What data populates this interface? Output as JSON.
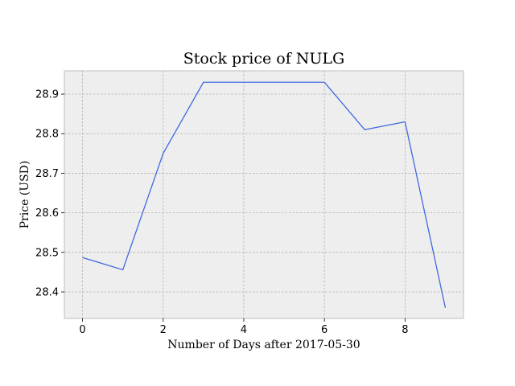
{
  "chart_data": {
    "type": "line",
    "title": "Stock price of NULG",
    "xlabel": "Number of Days after 2017-05-30",
    "ylabel": "Price (USD)",
    "xlim": [
      -0.45,
      9.45
    ],
    "ylim": [
      28.333,
      28.959
    ],
    "xticks": [
      0,
      2,
      4,
      6,
      8
    ],
    "yticks": [
      28.4,
      28.5,
      28.6,
      28.7,
      28.8,
      28.9
    ],
    "grid": true,
    "series": [
      {
        "x": [
          0,
          1,
          2,
          3,
          4,
          5,
          6,
          7,
          8,
          9
        ],
        "values": [
          28.487,
          28.456,
          28.75,
          28.93,
          28.93,
          28.93,
          28.93,
          28.81,
          28.83,
          28.36
        ],
        "color": "#4169e1"
      }
    ],
    "colors": {
      "plot_background": "#eeeeee",
      "frame": "#bcbcbc",
      "grid": "#b0b0b0"
    }
  }
}
